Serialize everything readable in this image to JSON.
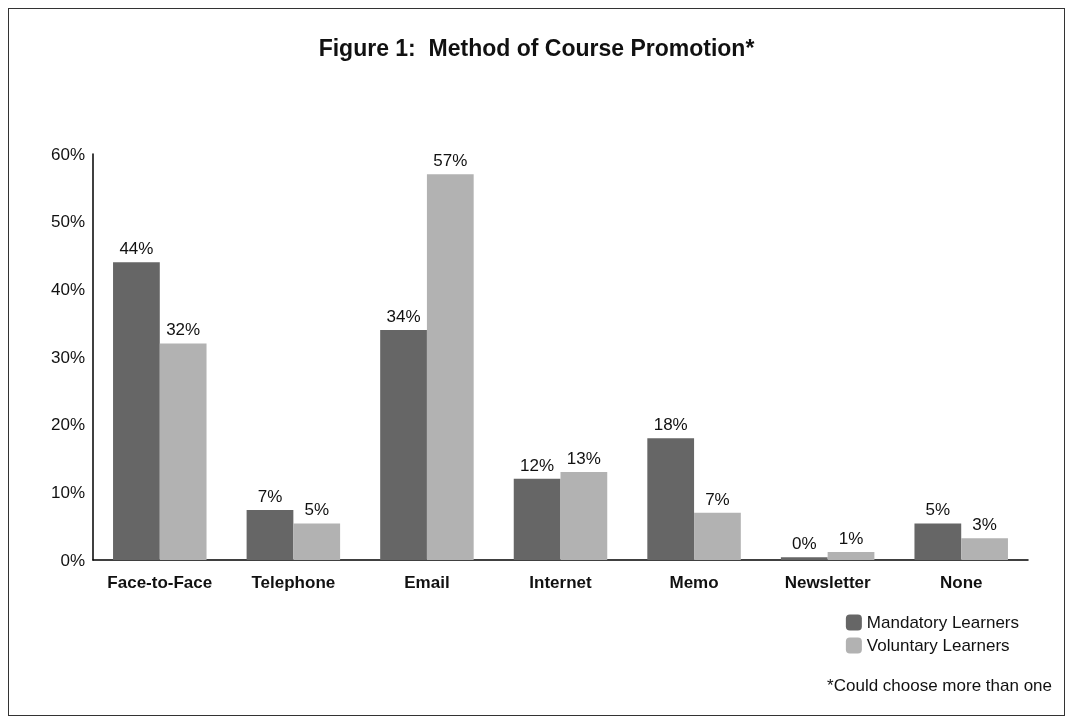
{
  "chart_data": {
    "type": "bar",
    "title": "Figure 1:  Method of Course Promotion*",
    "categories": [
      "Face-to-Face",
      "Telephone",
      "Email",
      "Internet",
      "Memo",
      "Newsletter",
      "None"
    ],
    "series": [
      {
        "name": "Mandatory Learners",
        "color": "#666666",
        "values": [
          44,
          7.4,
          34,
          12,
          18,
          0.4,
          5.4
        ],
        "value_labels": [
          "44%",
          "7%",
          "34%",
          "12%",
          "18%",
          "0%",
          "5%"
        ]
      },
      {
        "name": "Voluntary Learners",
        "color": "#b2b2b2",
        "values": [
          32,
          5.4,
          57,
          13,
          7,
          1.2,
          3.2
        ],
        "value_labels": [
          "32%",
          "5%",
          "57%",
          "13%",
          "7%",
          "1%",
          "3%"
        ]
      }
    ],
    "ylim": [
      0,
      60
    ],
    "yticks": [
      {
        "value": 0,
        "label": "0%"
      },
      {
        "value": 10,
        "label": "10%"
      },
      {
        "value": 20,
        "label": "20%"
      },
      {
        "value": 30,
        "label": "30%"
      },
      {
        "value": 40,
        "label": "40%"
      },
      {
        "value": 50,
        "label": "50%"
      },
      {
        "value": 60,
        "label": "60%"
      }
    ],
    "grid": false,
    "legend": "bottom right",
    "annotations": [
      "*Could choose more than one"
    ]
  }
}
